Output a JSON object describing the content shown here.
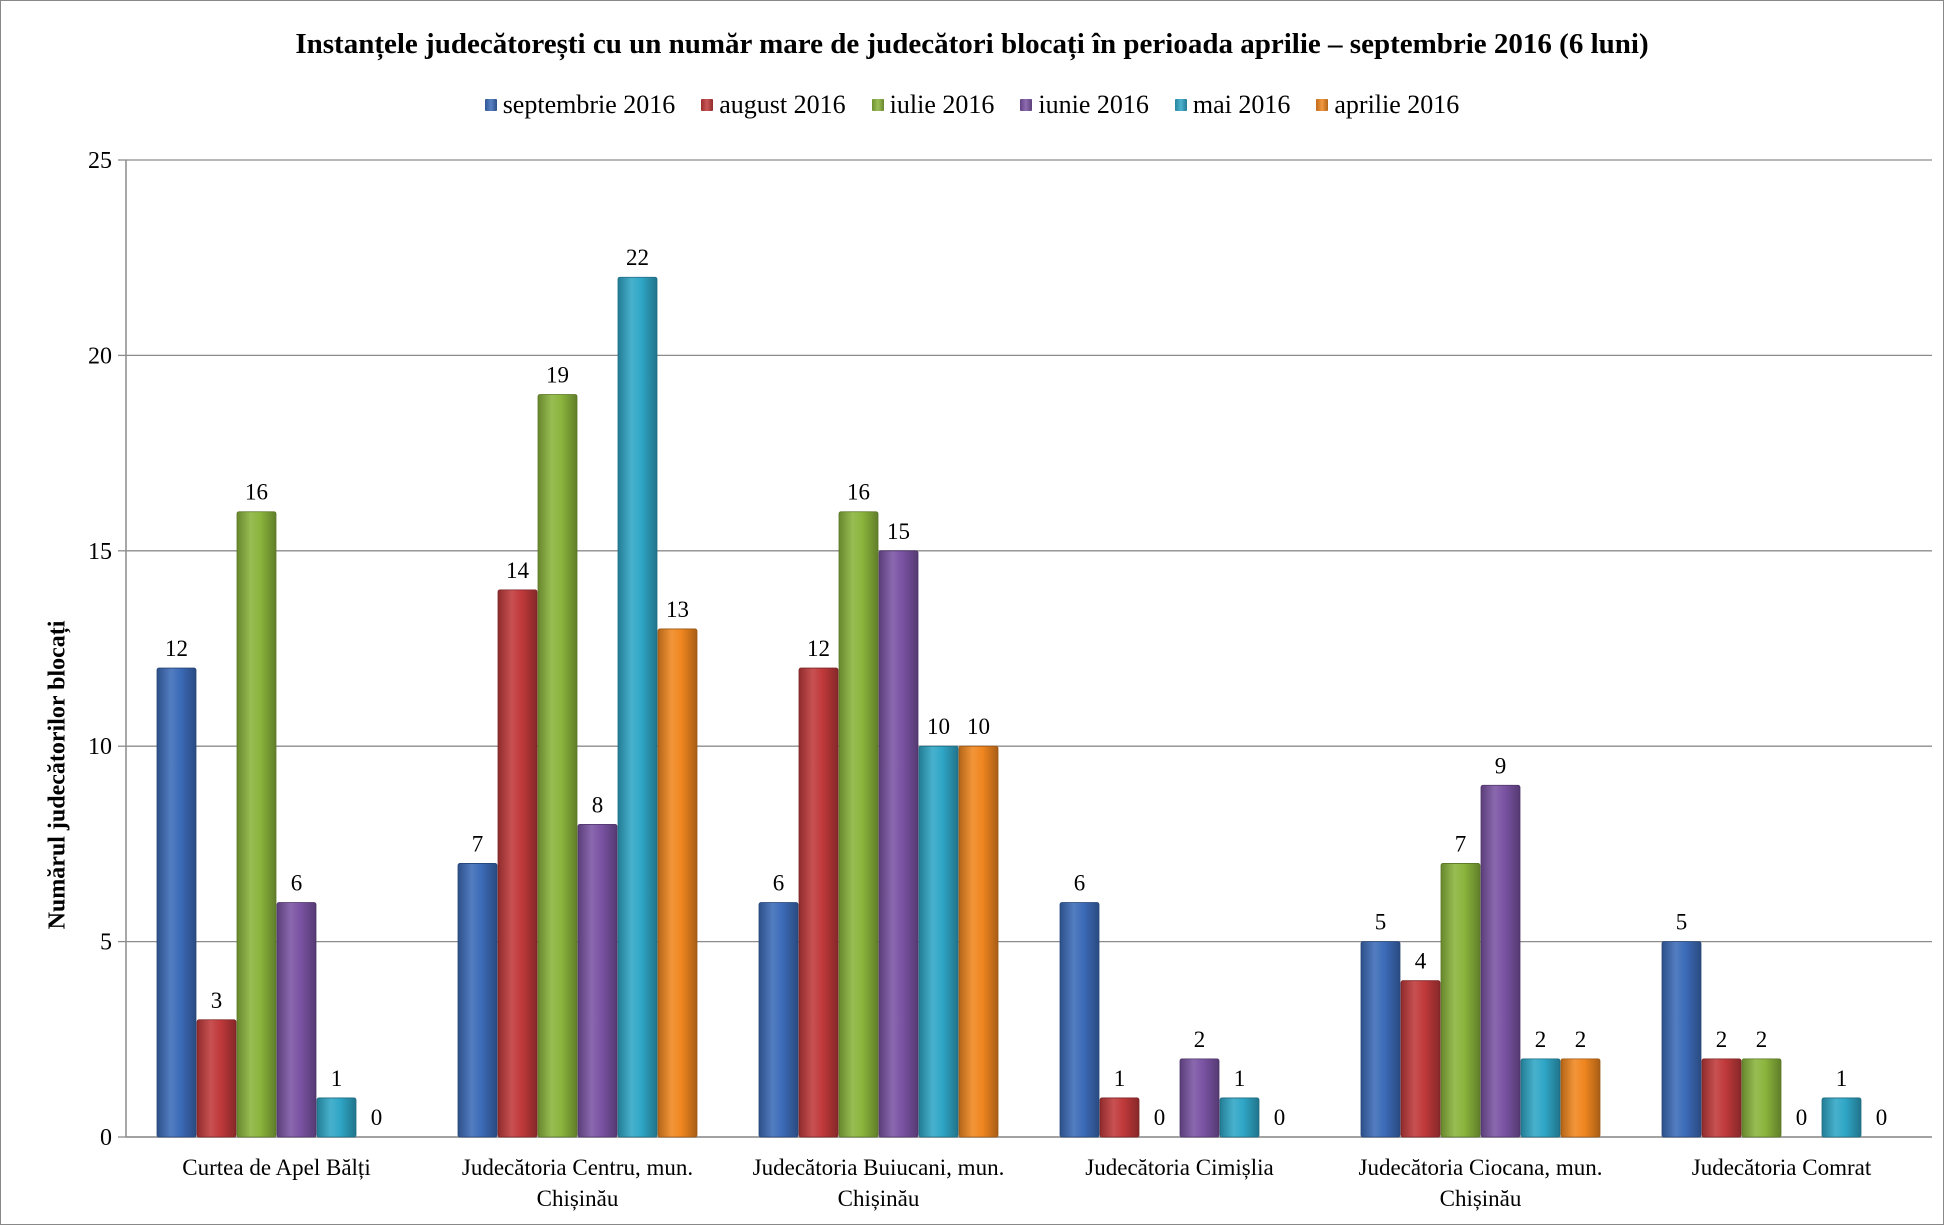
{
  "chart_data": {
    "type": "bar",
    "title": "Instanțele judecătorești cu un număr mare de judecători blocați în perioada aprilie – septembrie 2016 (6 luni)",
    "ylabel": "Numărul judecătorilor blocați",
    "xlabel": "",
    "ylim": [
      0,
      25
    ],
    "yticks": [
      0,
      5,
      10,
      15,
      20,
      25
    ],
    "grid": true,
    "legend_position": "top",
    "categories": [
      [
        "Curtea de Apel Bălți"
      ],
      [
        "Judecătoria Centru, mun.",
        "Chișinău"
      ],
      [
        "Judecătoria Buiucani, mun.",
        "Chișinău"
      ],
      [
        "Judecătoria Cimișlia"
      ],
      [
        "Judecătoria Ciocana, mun.",
        "Chișinău"
      ],
      [
        "Judecătoria Comrat"
      ]
    ],
    "series": [
      {
        "name": "septembrie 2016",
        "color": "#3C6BB8",
        "values": [
          12,
          7,
          6,
          6,
          5,
          5
        ]
      },
      {
        "name": "august 2016",
        "color": "#C0393A",
        "values": [
          3,
          14,
          12,
          1,
          4,
          2
        ]
      },
      {
        "name": "iulie 2016",
        "color": "#8AB43C",
        "values": [
          16,
          19,
          16,
          0,
          7,
          2
        ]
      },
      {
        "name": "iunie 2016",
        "color": "#7A53A3",
        "values": [
          6,
          8,
          15,
          2,
          9,
          0
        ]
      },
      {
        "name": "mai 2016",
        "color": "#2FA6C6",
        "values": [
          1,
          22,
          10,
          1,
          2,
          1
        ]
      },
      {
        "name": "aprilie 2016",
        "color": "#F0861F",
        "values": [
          0,
          13,
          10,
          0,
          2,
          0
        ]
      }
    ]
  }
}
